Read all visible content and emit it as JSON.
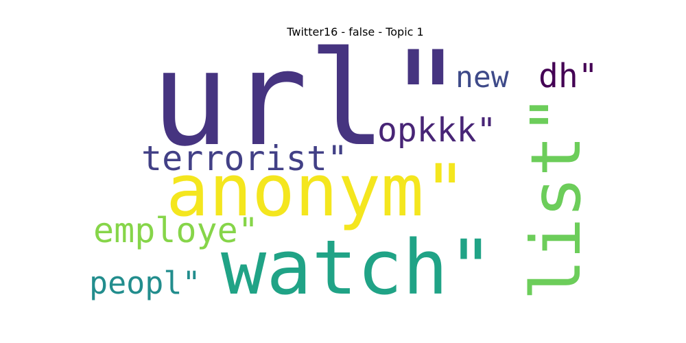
{
  "chart_data": {
    "type": "wordcloud",
    "title": "Twitter16 - false - Topic 1",
    "words": [
      {
        "text": "url\"",
        "weight": 1.0,
        "color": "#463480",
        "orientation": "horizontal"
      },
      {
        "text": "watch\"",
        "weight": 0.62,
        "color": "#20a386",
        "orientation": "horizontal"
      },
      {
        "text": "anonym\"",
        "weight": 0.58,
        "color": "#f4e61e",
        "orientation": "horizontal"
      },
      {
        "text": "list\"",
        "weight": 0.55,
        "color": "#6ccd5a",
        "orientation": "vertical"
      },
      {
        "text": "terrorist\"",
        "weight": 0.28,
        "color": "#424086",
        "orientation": "horizontal"
      },
      {
        "text": "employe\"",
        "weight": 0.28,
        "color": "#86d549",
        "orientation": "horizontal"
      },
      {
        "text": "opkkk\"",
        "weight": 0.27,
        "color": "#482576",
        "orientation": "horizontal"
      },
      {
        "text": "dh\"",
        "weight": 0.27,
        "color": "#440154",
        "orientation": "horizontal"
      },
      {
        "text": "peopl\"",
        "weight": 0.25,
        "color": "#228d8d",
        "orientation": "horizontal"
      },
      {
        "text": "new",
        "weight": 0.24,
        "color": "#3e4a89",
        "orientation": "horizontal"
      }
    ]
  }
}
